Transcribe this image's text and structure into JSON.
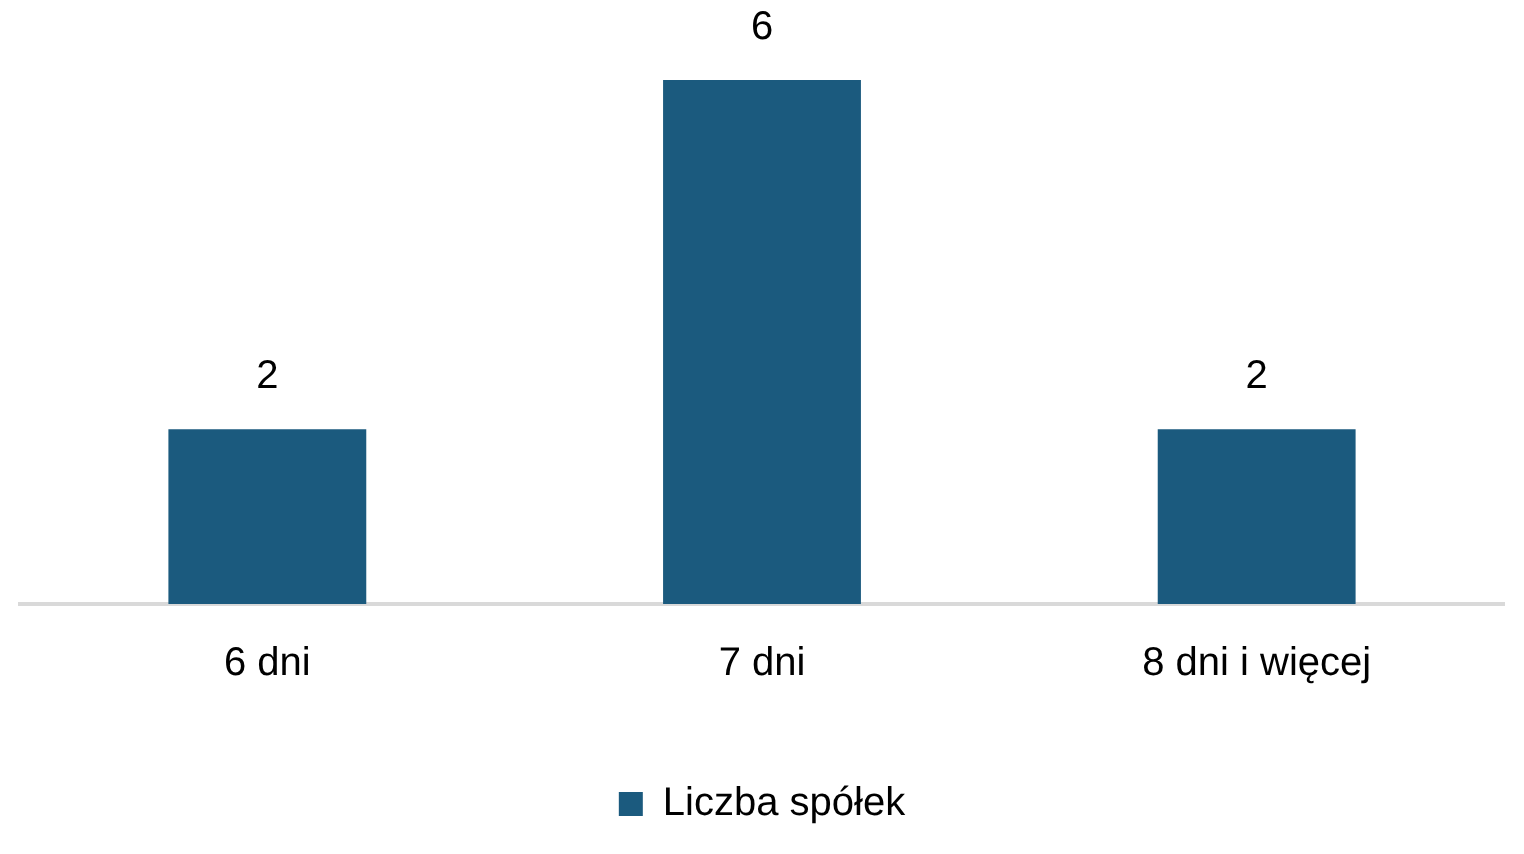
{
  "chart_data": {
    "type": "bar",
    "categories": [
      "6 dni",
      "7 dni",
      "8 dni i więcej"
    ],
    "series": [
      {
        "name": "Liczba spółek",
        "color": "#1b5a7e",
        "values": [
          2,
          6,
          2
        ]
      }
    ],
    "data_labels": true,
    "legend": "bottom",
    "grid": false
  }
}
